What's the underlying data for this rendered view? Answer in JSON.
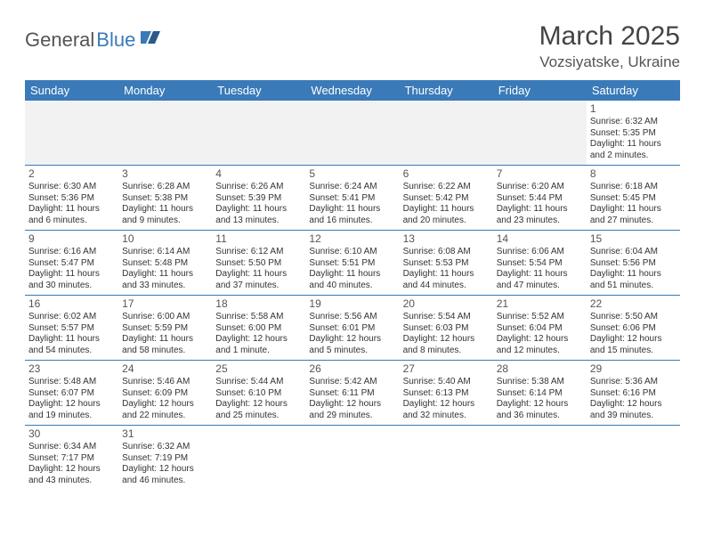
{
  "logo": {
    "part1": "General",
    "part2": "Blue"
  },
  "title": "March 2025",
  "location": "Vozsiyatske, Ukraine",
  "colors": {
    "header_bg": "#3a7ab8",
    "text": "#333333",
    "page_bg": "#ffffff",
    "empty_bg": "#f2f2f2"
  },
  "day_headers": [
    "Sunday",
    "Monday",
    "Tuesday",
    "Wednesday",
    "Thursday",
    "Friday",
    "Saturday"
  ],
  "weeks": [
    [
      null,
      null,
      null,
      null,
      null,
      null,
      {
        "n": "1",
        "sunrise": "Sunrise: 6:32 AM",
        "sunset": "Sunset: 5:35 PM",
        "daylight": "Daylight: 11 hours and 2 minutes."
      }
    ],
    [
      {
        "n": "2",
        "sunrise": "Sunrise: 6:30 AM",
        "sunset": "Sunset: 5:36 PM",
        "daylight": "Daylight: 11 hours and 6 minutes."
      },
      {
        "n": "3",
        "sunrise": "Sunrise: 6:28 AM",
        "sunset": "Sunset: 5:38 PM",
        "daylight": "Daylight: 11 hours and 9 minutes."
      },
      {
        "n": "4",
        "sunrise": "Sunrise: 6:26 AM",
        "sunset": "Sunset: 5:39 PM",
        "daylight": "Daylight: 11 hours and 13 minutes."
      },
      {
        "n": "5",
        "sunrise": "Sunrise: 6:24 AM",
        "sunset": "Sunset: 5:41 PM",
        "daylight": "Daylight: 11 hours and 16 minutes."
      },
      {
        "n": "6",
        "sunrise": "Sunrise: 6:22 AM",
        "sunset": "Sunset: 5:42 PM",
        "daylight": "Daylight: 11 hours and 20 minutes."
      },
      {
        "n": "7",
        "sunrise": "Sunrise: 6:20 AM",
        "sunset": "Sunset: 5:44 PM",
        "daylight": "Daylight: 11 hours and 23 minutes."
      },
      {
        "n": "8",
        "sunrise": "Sunrise: 6:18 AM",
        "sunset": "Sunset: 5:45 PM",
        "daylight": "Daylight: 11 hours and 27 minutes."
      }
    ],
    [
      {
        "n": "9",
        "sunrise": "Sunrise: 6:16 AM",
        "sunset": "Sunset: 5:47 PM",
        "daylight": "Daylight: 11 hours and 30 minutes."
      },
      {
        "n": "10",
        "sunrise": "Sunrise: 6:14 AM",
        "sunset": "Sunset: 5:48 PM",
        "daylight": "Daylight: 11 hours and 33 minutes."
      },
      {
        "n": "11",
        "sunrise": "Sunrise: 6:12 AM",
        "sunset": "Sunset: 5:50 PM",
        "daylight": "Daylight: 11 hours and 37 minutes."
      },
      {
        "n": "12",
        "sunrise": "Sunrise: 6:10 AM",
        "sunset": "Sunset: 5:51 PM",
        "daylight": "Daylight: 11 hours and 40 minutes."
      },
      {
        "n": "13",
        "sunrise": "Sunrise: 6:08 AM",
        "sunset": "Sunset: 5:53 PM",
        "daylight": "Daylight: 11 hours and 44 minutes."
      },
      {
        "n": "14",
        "sunrise": "Sunrise: 6:06 AM",
        "sunset": "Sunset: 5:54 PM",
        "daylight": "Daylight: 11 hours and 47 minutes."
      },
      {
        "n": "15",
        "sunrise": "Sunrise: 6:04 AM",
        "sunset": "Sunset: 5:56 PM",
        "daylight": "Daylight: 11 hours and 51 minutes."
      }
    ],
    [
      {
        "n": "16",
        "sunrise": "Sunrise: 6:02 AM",
        "sunset": "Sunset: 5:57 PM",
        "daylight": "Daylight: 11 hours and 54 minutes."
      },
      {
        "n": "17",
        "sunrise": "Sunrise: 6:00 AM",
        "sunset": "Sunset: 5:59 PM",
        "daylight": "Daylight: 11 hours and 58 minutes."
      },
      {
        "n": "18",
        "sunrise": "Sunrise: 5:58 AM",
        "sunset": "Sunset: 6:00 PM",
        "daylight": "Daylight: 12 hours and 1 minute."
      },
      {
        "n": "19",
        "sunrise": "Sunrise: 5:56 AM",
        "sunset": "Sunset: 6:01 PM",
        "daylight": "Daylight: 12 hours and 5 minutes."
      },
      {
        "n": "20",
        "sunrise": "Sunrise: 5:54 AM",
        "sunset": "Sunset: 6:03 PM",
        "daylight": "Daylight: 12 hours and 8 minutes."
      },
      {
        "n": "21",
        "sunrise": "Sunrise: 5:52 AM",
        "sunset": "Sunset: 6:04 PM",
        "daylight": "Daylight: 12 hours and 12 minutes."
      },
      {
        "n": "22",
        "sunrise": "Sunrise: 5:50 AM",
        "sunset": "Sunset: 6:06 PM",
        "daylight": "Daylight: 12 hours and 15 minutes."
      }
    ],
    [
      {
        "n": "23",
        "sunrise": "Sunrise: 5:48 AM",
        "sunset": "Sunset: 6:07 PM",
        "daylight": "Daylight: 12 hours and 19 minutes."
      },
      {
        "n": "24",
        "sunrise": "Sunrise: 5:46 AM",
        "sunset": "Sunset: 6:09 PM",
        "daylight": "Daylight: 12 hours and 22 minutes."
      },
      {
        "n": "25",
        "sunrise": "Sunrise: 5:44 AM",
        "sunset": "Sunset: 6:10 PM",
        "daylight": "Daylight: 12 hours and 25 minutes."
      },
      {
        "n": "26",
        "sunrise": "Sunrise: 5:42 AM",
        "sunset": "Sunset: 6:11 PM",
        "daylight": "Daylight: 12 hours and 29 minutes."
      },
      {
        "n": "27",
        "sunrise": "Sunrise: 5:40 AM",
        "sunset": "Sunset: 6:13 PM",
        "daylight": "Daylight: 12 hours and 32 minutes."
      },
      {
        "n": "28",
        "sunrise": "Sunrise: 5:38 AM",
        "sunset": "Sunset: 6:14 PM",
        "daylight": "Daylight: 12 hours and 36 minutes."
      },
      {
        "n": "29",
        "sunrise": "Sunrise: 5:36 AM",
        "sunset": "Sunset: 6:16 PM",
        "daylight": "Daylight: 12 hours and 39 minutes."
      }
    ],
    [
      {
        "n": "30",
        "sunrise": "Sunrise: 6:34 AM",
        "sunset": "Sunset: 7:17 PM",
        "daylight": "Daylight: 12 hours and 43 minutes."
      },
      {
        "n": "31",
        "sunrise": "Sunrise: 6:32 AM",
        "sunset": "Sunset: 7:19 PM",
        "daylight": "Daylight: 12 hours and 46 minutes."
      },
      null,
      null,
      null,
      null,
      null
    ]
  ]
}
